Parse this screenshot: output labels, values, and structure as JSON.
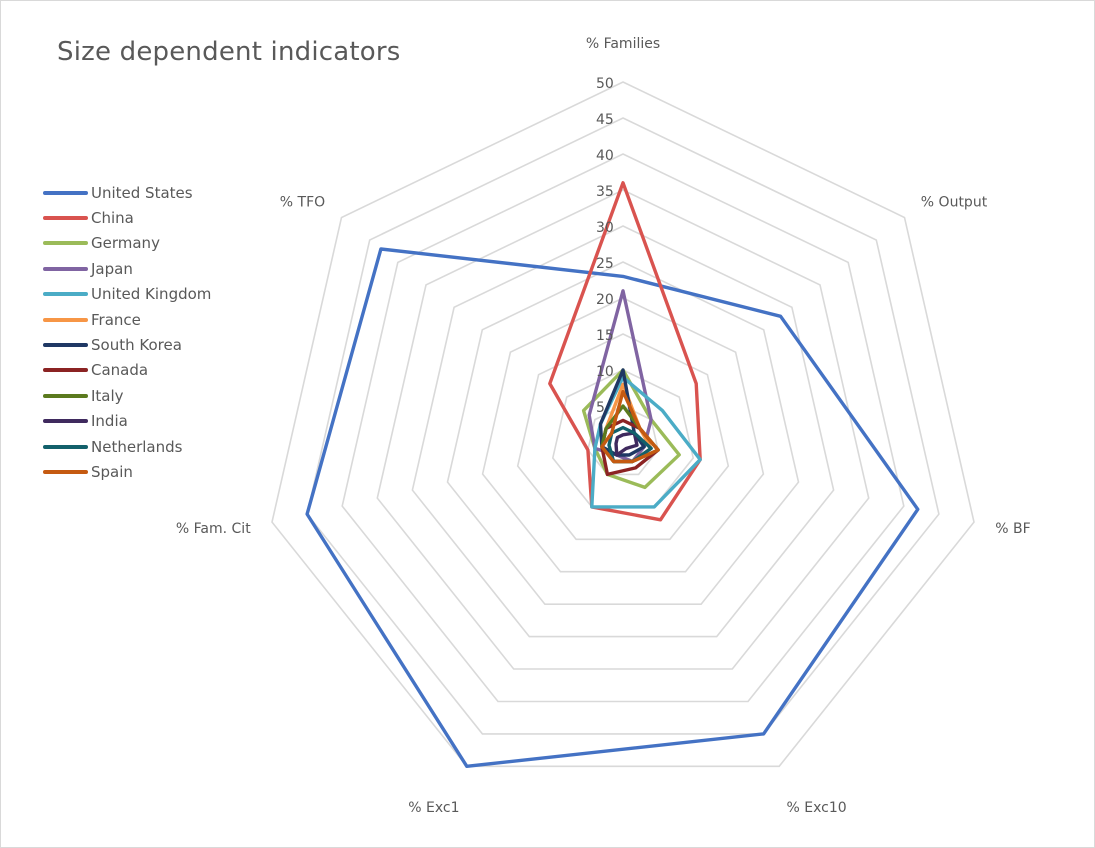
{
  "chart_data": {
    "type": "radar",
    "title": "Size dependent indicators",
    "axes": [
      "% Families",
      "% Output",
      "% BF",
      "% Exc10",
      "% Exc1",
      "% Fam. Cit",
      "% TFO"
    ],
    "rlim": [
      0,
      50
    ],
    "ticks": [
      5,
      10,
      15,
      20,
      25,
      30,
      35,
      40,
      45,
      50
    ],
    "grid": true,
    "legend_position": "left",
    "series": [
      {
        "name": "United States",
        "color": "#4472C4",
        "values": [
          23,
          28,
          42,
          45,
          50,
          45,
          43
        ]
      },
      {
        "name": "China",
        "color": "#D9534F",
        "values": [
          36,
          13,
          11,
          12,
          10,
          5,
          13
        ]
      },
      {
        "name": "Germany",
        "color": "#9BBB59",
        "values": [
          10,
          5,
          8,
          7,
          5,
          4,
          7
        ]
      },
      {
        "name": "Japan",
        "color": "#8064A2",
        "values": [
          21,
          5,
          3,
          3,
          2,
          4,
          6
        ]
      },
      {
        "name": "United Kingdom",
        "color": "#4BACC6",
        "values": [
          9,
          7,
          11,
          10,
          10,
          4,
          4
        ]
      },
      {
        "name": "France",
        "color": "#F79646",
        "values": [
          8,
          3,
          4,
          3,
          3,
          3,
          3
        ]
      },
      {
        "name": "South Korea",
        "color": "#1F3864",
        "values": [
          10,
          2,
          3,
          2,
          2,
          3,
          4
        ]
      },
      {
        "name": "Canada",
        "color": "#8B2323",
        "values": [
          3,
          3,
          5,
          4,
          5,
          3,
          3
        ]
      },
      {
        "name": "Italy",
        "color": "#5B7A1E",
        "values": [
          5,
          3,
          5,
          3,
          3,
          3,
          3
        ]
      },
      {
        "name": "India",
        "color": "#3F2A5E",
        "values": [
          1,
          2,
          2,
          1,
          2,
          1,
          1
        ]
      },
      {
        "name": "Netherlands",
        "color": "#12606B",
        "values": [
          2,
          2,
          4,
          3,
          3,
          2,
          2
        ]
      },
      {
        "name": "Spain",
        "color": "#C55A11",
        "values": [
          7,
          3,
          5,
          3,
          3,
          3,
          2
        ]
      }
    ]
  }
}
